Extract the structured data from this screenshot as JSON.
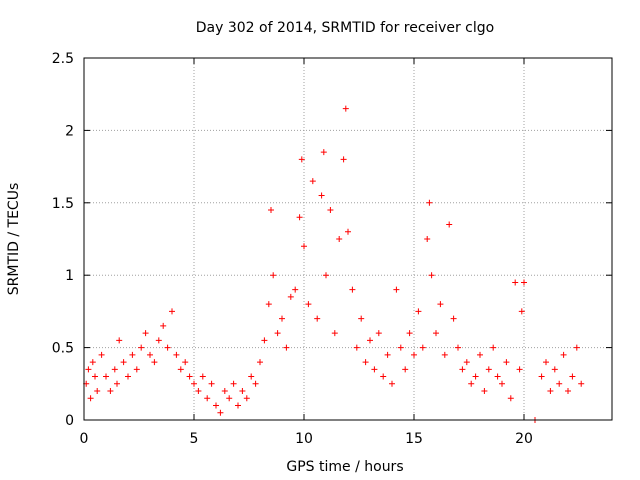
{
  "chart_data": {
    "type": "scatter",
    "title": "Day 302 of 2014, SRMTID for receiver clgo",
    "xlabel": "GPS time / hours",
    "ylabel": "SRMTID / TECUs",
    "xlim": [
      0,
      24
    ],
    "ylim": [
      0,
      2.5
    ],
    "x_ticks": [
      0,
      5,
      10,
      15,
      20
    ],
    "x_tick_labels": [
      "0",
      "5",
      "10",
      "15",
      "20"
    ],
    "y_ticks": [
      0,
      0.5,
      1,
      1.5,
      2,
      2.5
    ],
    "y_tick_labels": [
      "0",
      "0.5",
      "1",
      "1.5",
      "2",
      "2.5"
    ],
    "grid": true,
    "marker": "plus",
    "color": "#ff0000",
    "series": [
      {
        "name": "SRMTID",
        "x": [
          0.1,
          0.2,
          0.3,
          0.4,
          0.5,
          0.6,
          0.8,
          1.0,
          1.2,
          1.4,
          1.5,
          1.6,
          1.8,
          2.0,
          2.2,
          2.4,
          2.6,
          2.8,
          3.0,
          3.2,
          3.4,
          3.6,
          3.8,
          4.0,
          4.2,
          4.4,
          4.6,
          4.8,
          5.0,
          5.2,
          5.4,
          5.6,
          5.8,
          6.0,
          6.2,
          6.4,
          6.6,
          6.8,
          7.0,
          7.2,
          7.4,
          7.6,
          7.8,
          8.0,
          8.2,
          8.4,
          8.5,
          8.6,
          8.8,
          9.0,
          9.2,
          9.4,
          9.6,
          9.8,
          9.9,
          10.0,
          10.2,
          10.4,
          10.6,
          10.8,
          10.9,
          11.0,
          11.2,
          11.4,
          11.6,
          11.8,
          11.9,
          12.0,
          12.2,
          12.4,
          12.6,
          12.8,
          13.0,
          13.2,
          13.4,
          13.6,
          13.8,
          14.0,
          14.2,
          14.4,
          14.6,
          14.8,
          15.0,
          15.2,
          15.4,
          15.6,
          15.7,
          15.8,
          16.0,
          16.2,
          16.4,
          16.6,
          16.8,
          17.0,
          17.2,
          17.4,
          17.6,
          17.8,
          18.0,
          18.2,
          18.4,
          18.6,
          18.8,
          19.0,
          19.2,
          19.4,
          19.6,
          19.8,
          19.9,
          20.0,
          20.8,
          21.0,
          21.2,
          21.4,
          21.6,
          21.8,
          22.0,
          22.2,
          22.4,
          22.6,
          20.5
        ],
        "y": [
          0.25,
          0.35,
          0.15,
          0.4,
          0.3,
          0.2,
          0.45,
          0.3,
          0.2,
          0.35,
          0.25,
          0.55,
          0.4,
          0.3,
          0.45,
          0.35,
          0.5,
          0.6,
          0.45,
          0.4,
          0.55,
          0.65,
          0.5,
          0.75,
          0.45,
          0.35,
          0.4,
          0.3,
          0.25,
          0.2,
          0.3,
          0.15,
          0.25,
          0.1,
          0.05,
          0.2,
          0.15,
          0.25,
          0.1,
          0.2,
          0.15,
          0.3,
          0.25,
          0.4,
          0.55,
          0.8,
          1.45,
          1.0,
          0.6,
          0.7,
          0.5,
          0.85,
          0.9,
          1.4,
          1.8,
          1.2,
          0.8,
          1.65,
          0.7,
          1.55,
          1.85,
          1.0,
          1.45,
          0.6,
          1.25,
          1.8,
          2.15,
          1.3,
          0.9,
          0.5,
          0.7,
          0.4,
          0.55,
          0.35,
          0.6,
          0.3,
          0.45,
          0.25,
          0.9,
          0.5,
          0.35,
          0.6,
          0.45,
          0.75,
          0.5,
          1.25,
          1.5,
          1.0,
          0.6,
          0.8,
          0.45,
          1.35,
          0.7,
          0.5,
          0.35,
          0.4,
          0.25,
          0.3,
          0.45,
          0.2,
          0.35,
          0.5,
          0.3,
          0.25,
          0.4,
          0.15,
          0.95,
          0.35,
          0.75,
          0.95,
          0.3,
          0.4,
          0.2,
          0.35,
          0.25,
          0.45,
          0.2,
          0.3,
          0.5,
          0.25,
          0.0
        ]
      }
    ]
  }
}
